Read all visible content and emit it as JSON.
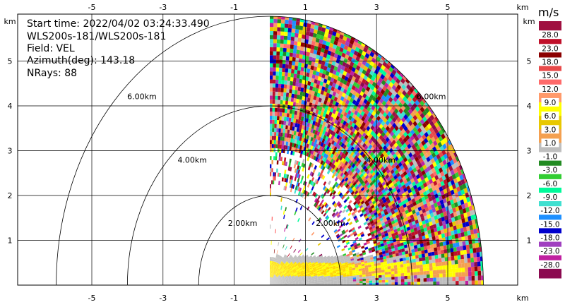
{
  "info": {
    "start_time": "Start time: 2022/04/02 03:24:33.490",
    "instrument": "WLS200s-181/WLS200s-181",
    "field": "Field: VEL",
    "azimuth": "Azimuth(deg): 143.18",
    "nrays": "NRays: 88"
  },
  "axis_unit": "km",
  "chart_data": {
    "type": "heatmap",
    "field": "VEL",
    "start_time": "2022/04/02 03:24:33.490",
    "nrays": 88,
    "azimuth_deg": 143.18,
    "x_ticks": [
      -5,
      -3,
      -1,
      1,
      3,
      5
    ],
    "y_ticks": [
      1,
      2,
      3,
      4,
      5
    ],
    "xlim": [
      -6.0,
      6.0
    ],
    "ylim": [
      0.0,
      6.0
    ],
    "xlabel": "km",
    "ylabel": "km",
    "range_rings_km": [
      2.0,
      4.0,
      6.0
    ],
    "range_ring_labels": [
      "2.00km",
      "4.00km",
      "6.00km"
    ],
    "sector_deg": [
      0,
      90
    ],
    "max_range_km": 6.0,
    "colorbar": {
      "unit": "m/s",
      "labels": [
        "28.0",
        "23.0",
        "18.0",
        "15.0",
        "12.0",
        "9.0",
        "6.0",
        "3.0",
        "1.0",
        "-1.0",
        "-3.0",
        "-6.0",
        "-9.0",
        "-12.0",
        "-15.0",
        "-18.0",
        "-23.0",
        "-28.0"
      ],
      "colors": [
        "#a01040",
        "#c0102a",
        "#8b0000",
        "#e84a4a",
        "#ff6a6a",
        "#ff9a6a",
        "#ffff00",
        "#e8c800",
        "#f4a050",
        "#bebebe",
        "#228b22",
        "#32cd32",
        "#00fa9a",
        "#40e0d0",
        "#1e90ff",
        "#0000cd",
        "#a040c0",
        "#c020a0",
        "#8b0a50"
      ]
    }
  }
}
